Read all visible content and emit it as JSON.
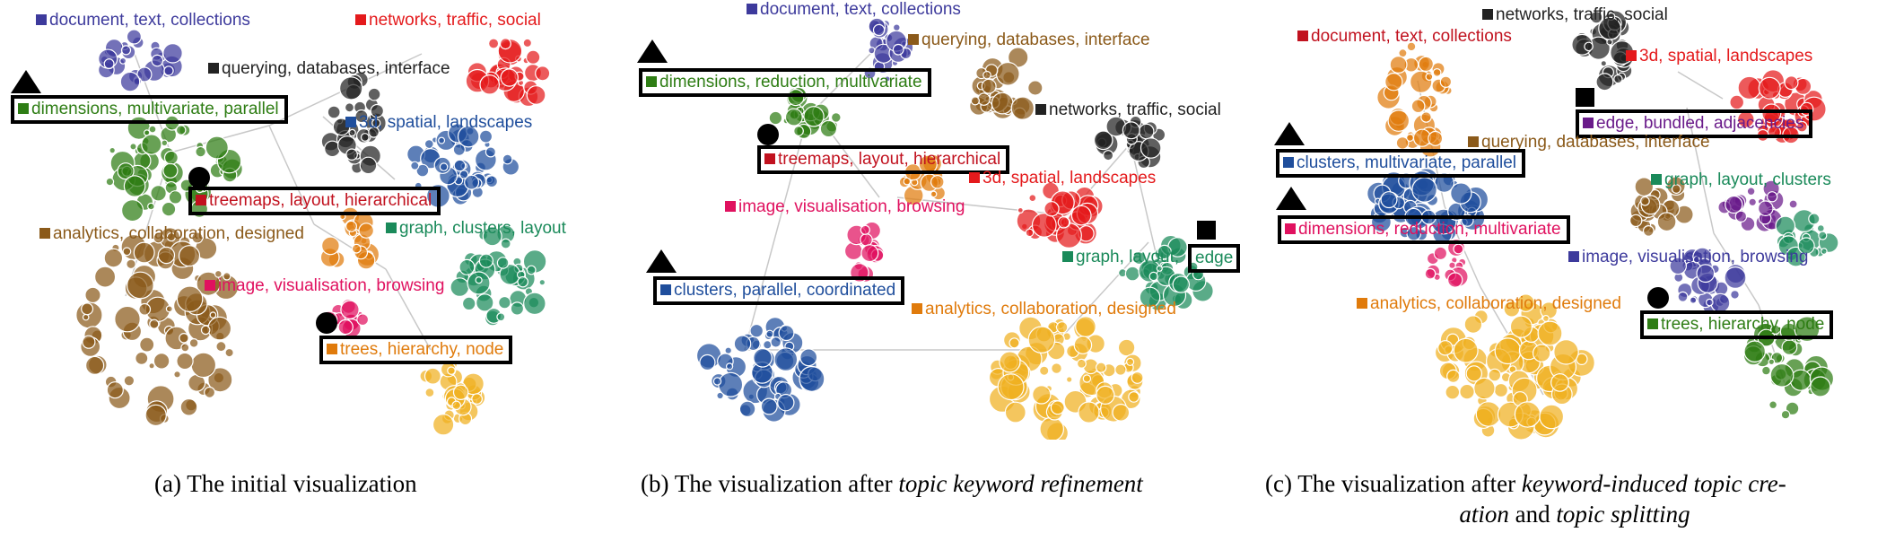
{
  "colors": {
    "blue_purple": "#3d3a9c",
    "red": "#e41a1c",
    "black": "#222222",
    "green": "#2e7d14",
    "brown": "#8b5a1a",
    "dark_red": "#c1121f",
    "orange": "#e07b0c",
    "pink": "#e0115f",
    "teal": "#1a8a5a",
    "steel_blue": "#1f4e9c",
    "gold": "#f0b020",
    "purple": "#6a1b8a"
  },
  "panels": [
    {
      "id": "a",
      "labels": [
        {
          "text": "document, text, collections",
          "color": "#3d3a9c",
          "boxed": false
        },
        {
          "text": "networks, traffic, social",
          "color": "#e41a1c",
          "boxed": false
        },
        {
          "text": "querying, databases, interface",
          "color": "#222222",
          "boxed": false
        },
        {
          "text": "dimensions, multivariate, parallel",
          "color": "#2e7d14",
          "boxed": true,
          "marker": "triangle"
        },
        {
          "text": "3d, spatial, landscapes",
          "color": "#1f4e9c",
          "boxed": false
        },
        {
          "text": "treemaps, layout, hierarchical",
          "color": "#c1121f",
          "boxed": true,
          "marker": "circle"
        },
        {
          "text": "analytics, collaboration, designed",
          "color": "#8b5a1a",
          "boxed": false
        },
        {
          "text": "graph, clusters, layout",
          "color": "#1a8a5a",
          "boxed": false
        },
        {
          "text": "image, visualisation, browsing",
          "color": "#e0115f",
          "boxed": false
        },
        {
          "text": "trees, hierarchy, node",
          "color": "#e07b0c",
          "boxed": true,
          "marker": "circle"
        }
      ],
      "caption": {
        "prefix": "(a) The initial visualization",
        "em1": "",
        "mid": "",
        "em2": ""
      }
    },
    {
      "id": "b",
      "labels": [
        {
          "text": "document, text, collections",
          "color": "#3d3a9c",
          "boxed": false
        },
        {
          "text": "querying, databases, interface",
          "color": "#8b5a1a",
          "boxed": false
        },
        {
          "text": "dimensions, reduction, multivariate",
          "color": "#2e7d14",
          "boxed": true,
          "marker": "triangle"
        },
        {
          "text": "networks, traffic, social",
          "color": "#222222",
          "boxed": false
        },
        {
          "text": "treemaps, layout, hierarchical",
          "color": "#c1121f",
          "boxed": true,
          "marker": "circle"
        },
        {
          "text": "3d, spatial, landscapes",
          "color": "#e41a1c",
          "boxed": false
        },
        {
          "text": "image, visualisation, browsing",
          "color": "#e0115f",
          "boxed": false
        },
        {
          "text": "graph, layout,",
          "color": "#1a8a5a",
          "boxed": false
        },
        {
          "text": "edge",
          "color": "#1a8a5a",
          "boxed": true,
          "marker": "square"
        },
        {
          "text": "clusters, parallel, coordinated",
          "color": "#1f4e9c",
          "boxed": true,
          "marker": "triangle"
        },
        {
          "text": "analytics, collaboration, designed",
          "color": "#e07b0c",
          "boxed": false
        }
      ],
      "caption": {
        "prefix": "(b) The visualization after ",
        "em1": "topic keyword refinement",
        "mid": "",
        "em2": ""
      }
    },
    {
      "id": "c",
      "labels": [
        {
          "text": "networks, traffic, social",
          "color": "#222222",
          "boxed": false
        },
        {
          "text": "document, text, collections",
          "color": "#c1121f",
          "boxed": false
        },
        {
          "text": "3d, spatial, landscapes",
          "color": "#e41a1c",
          "boxed": false
        },
        {
          "text": "edge, bundled, adjacencies",
          "color": "#6a1b8a",
          "boxed": true,
          "marker": "square"
        },
        {
          "text": "querying, databases, interface",
          "color": "#8b5a1a",
          "boxed": false
        },
        {
          "text": "clusters, multivariate, parallel",
          "color": "#1f4e9c",
          "boxed": true,
          "marker": "triangle"
        },
        {
          "text": "graph, layout, clusters",
          "color": "#1a8a5a",
          "boxed": false
        },
        {
          "text": "dimensions, reduction, multivariate",
          "color": "#e0115f",
          "boxed": true,
          "marker": "triangle"
        },
        {
          "text": "image, visualisation, browsing",
          "color": "#3d3a9c",
          "boxed": false
        },
        {
          "text": "analytics, collaboration, designed",
          "color": "#e07b0c",
          "boxed": false
        },
        {
          "text": "trees, hierarchy, node",
          "color": "#2e7d14",
          "boxed": true,
          "marker": "circle"
        }
      ],
      "caption": {
        "prefix": "(c) The visualization after ",
        "em1": "keyword-induced topic cre-",
        "mid": " and ",
        "em2": "topic splitting",
        "line2_em": "ation"
      }
    }
  ]
}
